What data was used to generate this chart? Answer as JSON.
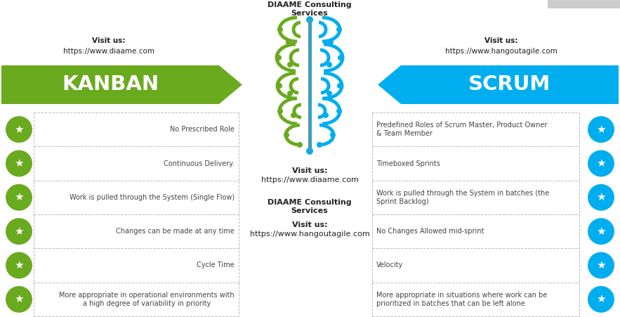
{
  "bg_color": "#ffffff",
  "kanban_arrow_color": "#6aaa1e",
  "scrum_arrow_color": "#00aeef",
  "kanban_label": "KANBAN",
  "scrum_label": "SCRUM",
  "kanban_visit1": "Visit us:",
  "kanban_visit2": "https://www.diaame.com",
  "scrum_visit1": "Visit us:",
  "scrum_visit2": "https://www.hangoutagile.com",
  "center_top_line1": "DIAAME Consulting",
  "center_top_line2": "Services",
  "center_mid_line1": "Visit us:",
  "center_mid_line2": "https://www.diaame.com",
  "center_bot_line1": "DIAAME Consulting",
  "center_bot_line2": "Services",
  "center_bot_line3": "Visit us:",
  "center_bot_line4": "https://www.hangoutagile.com",
  "kanban_rows": [
    "No Prescribed Role",
    "Continuous Delivery.",
    "Work is pulled through the System (Single Flow)",
    "Changes can be made at any time",
    "Cycle Time",
    "More appropriate in operational environments with\na high degree of variability in priority"
  ],
  "scrum_rows": [
    "Predefined Roles of Scrum Master, Product Owner\n& Team Member",
    "Timeboxed Sprints",
    "Work is pulled through the System in batches (the\nSprint Backlog)",
    "No Changes Allowed mid-sprint",
    "Velocity",
    "More appropriate in situations where work can be\nprioritized in batches that can be left alone"
  ],
  "kanban_icon_color": "#6aaa1e",
  "scrum_icon_color": "#00aeef",
  "table_border_color": "#bbbbbb",
  "text_color": "#444444",
  "arrow_text_color": "#ffffff"
}
